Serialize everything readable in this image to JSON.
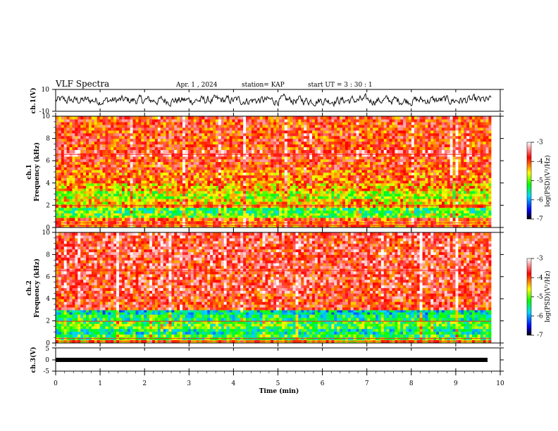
{
  "header": {
    "title": "VLF Spectra",
    "date": "Apr. 1 , 2024",
    "station": "station= KAP",
    "start": "start UT = 3 : 30 : 1"
  },
  "colors": {
    "spectrum_stops": [
      "#000000",
      "#0000ff",
      "#00d8ff",
      "#00ff00",
      "#ffff00",
      "#ff0000",
      "#ffffff"
    ],
    "trace": "#000000",
    "frame": "#000000"
  },
  "chart_data": [
    {
      "type": "line",
      "panel": "ch1-waveform",
      "ylabel": "ch.1(V)",
      "ylim": [
        -10,
        10
      ],
      "yticks": [
        {
          "v": 10,
          "label": "10"
        },
        {
          "v": -10,
          "label": "-10"
        }
      ],
      "xlim": [
        0,
        9.8
      ],
      "noise_amplitude": 4
    },
    {
      "type": "heatmap",
      "panel": "ch1-spectrogram",
      "ylabel": "ch.1",
      "ylabel2": "Frequency (kHz)",
      "ylim": [
        0,
        10
      ],
      "yticks": [
        0,
        2,
        4,
        6,
        8,
        10
      ],
      "xlim": [
        0,
        9.8
      ],
      "value_range": [
        -7,
        -3
      ],
      "bands": [
        {
          "f": [
            0.0,
            0.3
          ],
          "level": -4.2
        },
        {
          "f": [
            0.3,
            0.9
          ],
          "level": -4.0
        },
        {
          "f": [
            0.9,
            1.3
          ],
          "level": -5.0
        },
        {
          "f": [
            1.3,
            1.8
          ],
          "level": -5.2
        },
        {
          "f": [
            1.8,
            2.1
          ],
          "level": -4.4
        },
        {
          "f": [
            2.1,
            2.6
          ],
          "level": -4.5
        },
        {
          "f": [
            2.6,
            3.3
          ],
          "level": -4.8
        },
        {
          "f": [
            3.3,
            4.0
          ],
          "level": -4.4
        },
        {
          "f": [
            4.0,
            5.2
          ],
          "level": -4.1
        },
        {
          "f": [
            5.2,
            6.4
          ],
          "level": -3.9
        },
        {
          "f": [
            6.4,
            7.0
          ],
          "level": -3.6
        },
        {
          "f": [
            7.0,
            10.0
          ],
          "level": -3.9
        }
      ],
      "colorbar": {
        "label": "log(PSD)(V²/Hz)",
        "ticks": [
          {
            "v": -3,
            "label": "-3"
          },
          {
            "v": -4,
            "label": "-4"
          },
          {
            "v": -5,
            "label": "-5"
          },
          {
            "v": -6,
            "label": "-6"
          },
          {
            "v": -7,
            "label": "-7"
          }
        ]
      }
    },
    {
      "type": "heatmap",
      "panel": "ch2-spectrogram",
      "ylabel": "ch.2",
      "ylabel2": "Frequency (kHz)",
      "ylim": [
        0,
        10
      ],
      "yticks": [
        0,
        2,
        4,
        6,
        8,
        10
      ],
      "xlim": [
        0,
        9.8
      ],
      "value_range": [
        -7,
        -3
      ],
      "bands": [
        {
          "f": [
            0.0,
            0.3
          ],
          "level": -4.3
        },
        {
          "f": [
            0.3,
            0.8
          ],
          "level": -5.2
        },
        {
          "f": [
            0.8,
            1.3
          ],
          "level": -5.5
        },
        {
          "f": [
            1.3,
            2.0
          ],
          "level": -5.1
        },
        {
          "f": [
            2.0,
            2.6
          ],
          "level": -5.4
        },
        {
          "f": [
            2.6,
            3.0
          ],
          "level": -5.7
        },
        {
          "f": [
            3.0,
            4.5
          ],
          "level": -3.8
        },
        {
          "f": [
            4.5,
            10.0
          ],
          "level": -3.7
        }
      ],
      "colorbar": {
        "label": "log(PSD)(V²/Hz)",
        "ticks": [
          {
            "v": -3,
            "label": "-3"
          },
          {
            "v": -4,
            "label": "-4"
          },
          {
            "v": -5,
            "label": "-5"
          },
          {
            "v": -6,
            "label": "-6"
          },
          {
            "v": -7,
            "label": "-7"
          }
        ]
      }
    },
    {
      "type": "line",
      "panel": "ch3-waveform",
      "ylabel": "ch.3(V)",
      "ylim": [
        -5,
        5
      ],
      "yticks": [
        {
          "v": 5,
          "label": "5"
        },
        {
          "v": 0,
          "label": "0"
        },
        {
          "v": -5,
          "label": "-5"
        }
      ],
      "xlim": [
        0,
        9.8
      ],
      "constant_value": 0
    }
  ],
  "xaxis": {
    "label": "Time (min)",
    "xlim": [
      0,
      10
    ],
    "ticks": [
      "0",
      "1",
      "2",
      "3",
      "4",
      "5",
      "6",
      "7",
      "8",
      "9",
      "10"
    ]
  }
}
